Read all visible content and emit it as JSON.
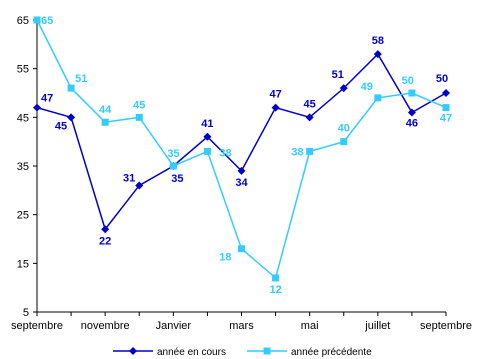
{
  "chart_data": {
    "type": "line",
    "title": "",
    "xlabel": "",
    "ylabel": "",
    "ylim": [
      5,
      65
    ],
    "yticks": [
      5,
      15,
      25,
      35,
      45,
      55,
      65
    ],
    "grid": false,
    "legend_position": "bottom",
    "x_tick_labels": [
      "septembre",
      "novembre",
      "Janvier",
      "mars",
      "mai",
      "juillet",
      "septembre"
    ],
    "series": [
      {
        "name": "année en cours",
        "color": "#0000cc",
        "marker": "diamond",
        "values": [
          47,
          45,
          22,
          31,
          35,
          41,
          34,
          47,
          45,
          51,
          58,
          46,
          50
        ]
      },
      {
        "name": "année précédente",
        "color": "#33ccff",
        "marker": "square",
        "values": [
          65,
          51,
          44,
          45,
          35,
          38,
          18,
          12,
          38,
          40,
          49,
          50,
          47
        ]
      }
    ]
  }
}
